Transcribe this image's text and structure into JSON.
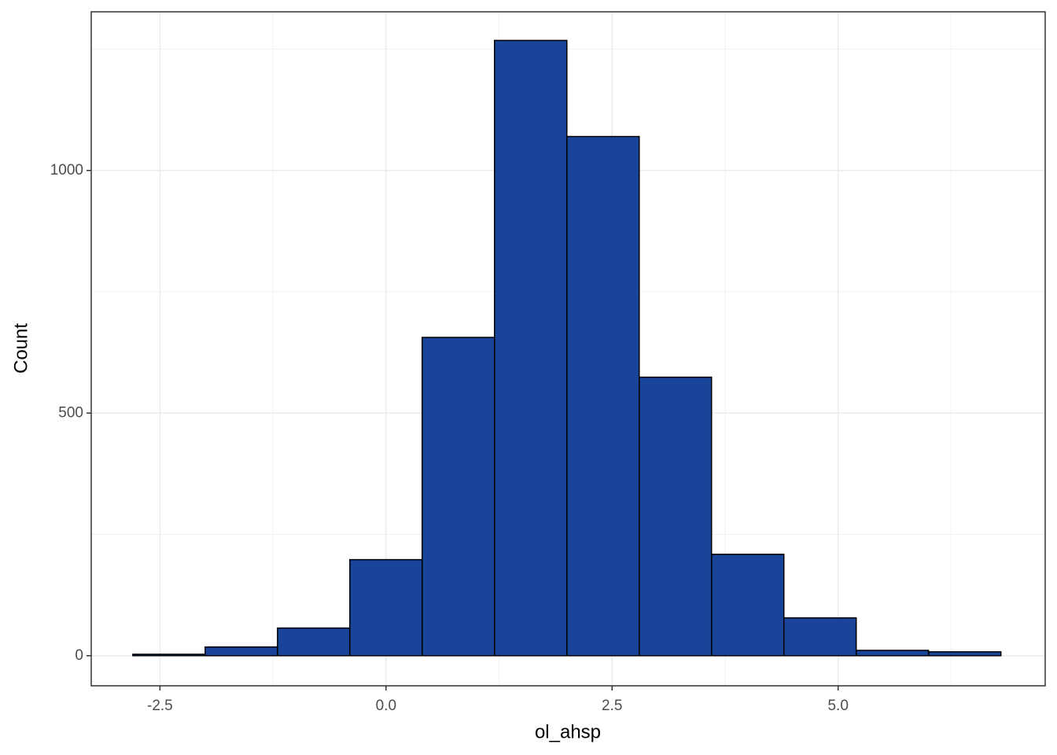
{
  "chart_data": {
    "type": "histogram",
    "x_label": "ol_ahsp",
    "y_label": "Count",
    "bins": [
      -2.8,
      -2.0,
      -1.2,
      -0.4,
      0.4,
      1.2,
      2.0,
      2.8,
      3.6,
      4.4,
      5.2,
      6.0,
      6.8
    ],
    "values": [
      3,
      18,
      57,
      198,
      656,
      1268,
      1070,
      574,
      209,
      78,
      11,
      8
    ],
    "color": "#1a4499",
    "edge_color": "#000000",
    "xlim": [
      -3.26,
      7.29
    ],
    "ylim": [
      -62,
      1327
    ],
    "xticks": [
      -2.5,
      {
        "value": 0,
        "label": "0.0"
      },
      2.5,
      {
        "value": 5,
        "label": "5.0"
      }
    ],
    "yticks": [
      0,
      500,
      1000
    ],
    "grid": true
  }
}
